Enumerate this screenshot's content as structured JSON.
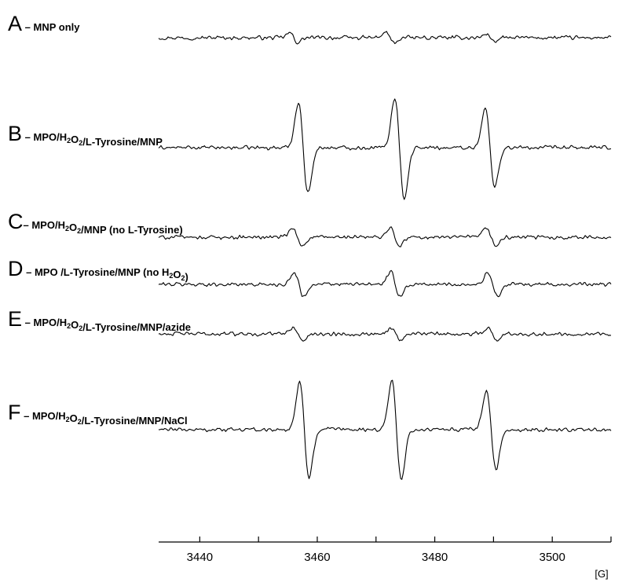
{
  "chart_data": {
    "type": "line",
    "x_range": [
      3433,
      3510
    ],
    "x_ticks": [
      3440,
      3450,
      3460,
      3470,
      3480,
      3490,
      3500,
      3510
    ],
    "x_tick_labels": [
      {
        "value": 3440,
        "text": "3440"
      },
      {
        "value": 3460,
        "text": "3460"
      },
      {
        "value": 3480,
        "text": "3480"
      },
      {
        "value": 3500,
        "text": "3500"
      }
    ],
    "x_unit": "[G]",
    "grid": false,
    "panels": [
      {
        "letter": "A",
        "dash": " – ",
        "label_parts": [
          {
            "t": "MNP only"
          }
        ],
        "trace": {
          "baseline_start": 3433,
          "baseline_end": 3510,
          "noise": 1.5,
          "lines": [
            {
              "center": 3456.0,
              "amp": 3.0,
              "width": 0.7
            },
            {
              "center": 3472.4,
              "amp": 3.5,
              "width": 0.7
            },
            {
              "center": 3489.5,
              "amp": 2.5,
              "width": 0.7
            }
          ]
        }
      },
      {
        "letter": "B",
        "dash": " – ",
        "label_parts": [
          {
            "t": "MPO/H"
          },
          {
            "t": "2",
            "sub": true
          },
          {
            "t": "O"
          },
          {
            "t": "2",
            "sub": true
          },
          {
            "t": "/L-Tyrosine/MNP"
          }
        ],
        "trace": {
          "baseline_start": 3433,
          "baseline_end": 3510,
          "noise": 1.5,
          "lines": [
            {
              "center": 3457.6,
              "amp": 29,
              "width": 0.8
            },
            {
              "center": 3474.0,
              "amp": 32,
              "width": 0.8
            },
            {
              "center": 3489.4,
              "amp": 25,
              "width": 0.8
            }
          ]
        }
      },
      {
        "letter": "C",
        "dash": "– ",
        "label_parts": [
          {
            "t": "MPO/H"
          },
          {
            "t": "2",
            "sub": true
          },
          {
            "t": "O"
          },
          {
            "t": "2",
            "sub": true
          },
          {
            "t": "/MNP (no L-Tyrosine)"
          }
        ],
        "trace": {
          "baseline_start": 3433,
          "baseline_end": 3510,
          "noise": 1.5,
          "lines": [
            {
              "center": 3456.6,
              "amp": 5.5,
              "width": 0.8
            },
            {
              "center": 3473.2,
              "amp": 6.0,
              "width": 0.8
            },
            {
              "center": 3489.6,
              "amp": 5.5,
              "width": 0.8
            }
          ]
        }
      },
      {
        "letter": "D",
        "dash": " – ",
        "label_parts": [
          {
            "t": "MPO /L-Tyrosine/MNP (no H"
          },
          {
            "t": "2",
            "sub": true
          },
          {
            "t": "O"
          },
          {
            "t": "2",
            "sub": true
          },
          {
            "t": ")"
          }
        ],
        "trace": {
          "baseline_start": 3433,
          "baseline_end": 3510,
          "noise": 1.5,
          "lines": [
            {
              "center": 3456.9,
              "amp": 7.5,
              "width": 0.8
            },
            {
              "center": 3473.3,
              "amp": 7.5,
              "width": 0.8
            },
            {
              "center": 3489.9,
              "amp": 7.5,
              "width": 0.8
            }
          ]
        }
      },
      {
        "letter": "E",
        "dash": " – ",
        "label_parts": [
          {
            "t": "MPO/H"
          },
          {
            "t": "2",
            "sub": true
          },
          {
            "t": "O"
          },
          {
            "t": "2",
            "sub": true
          },
          {
            "t": "/L-Tyrosine/MNP/azide"
          }
        ],
        "trace": {
          "baseline_start": 3433,
          "baseline_end": 3510,
          "noise": 1.5,
          "lines": [
            {
              "center": 3456.7,
              "amp": 4.5,
              "width": 0.8
            },
            {
              "center": 3473.4,
              "amp": 4.0,
              "width": 0.8
            },
            {
              "center": 3489.8,
              "amp": 4.0,
              "width": 0.8
            }
          ]
        }
      },
      {
        "letter": "F",
        "dash": " – ",
        "label_parts": [
          {
            "t": "MPO/H"
          },
          {
            "t": "2",
            "sub": true
          },
          {
            "t": "O"
          },
          {
            "t": "2",
            "sub": true
          },
          {
            "t": "/L-Tyrosine/MNP/NaCl"
          }
        ],
        "trace": {
          "baseline_start": 3433,
          "baseline_end": 3510,
          "noise": 1.5,
          "lines": [
            {
              "center": 3457.8,
              "amp": 30,
              "width": 0.8
            },
            {
              "center": 3473.5,
              "amp": 32,
              "width": 0.8
            },
            {
              "center": 3489.6,
              "amp": 25,
              "width": 0.8
            }
          ]
        }
      }
    ]
  }
}
